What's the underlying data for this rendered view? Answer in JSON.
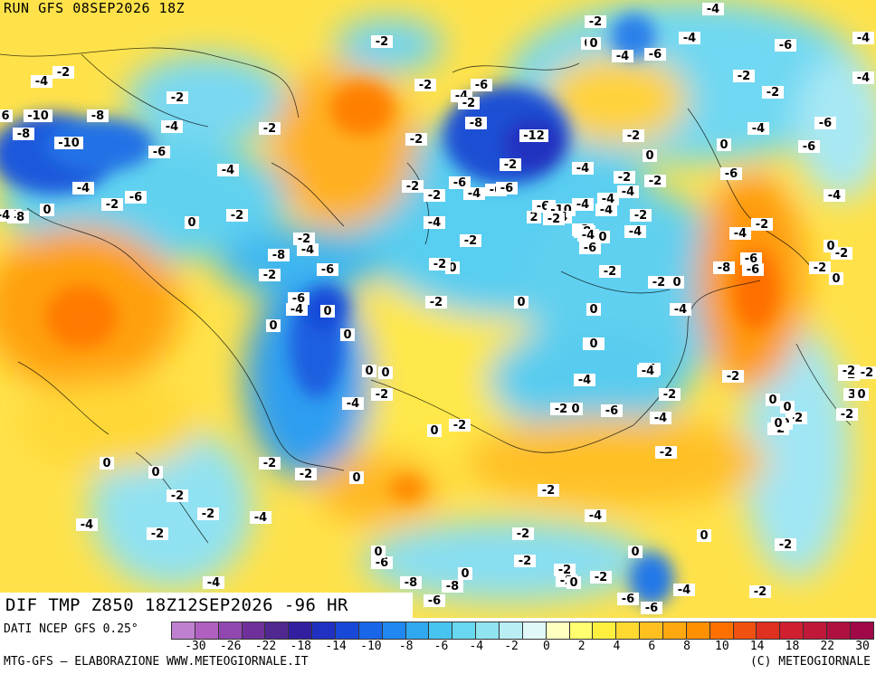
{
  "header": {
    "run": "RUN GFS 08SEP2026 18Z"
  },
  "title": {
    "text": "DIF TMP Z850 18Z12SEP2026 -96 HR"
  },
  "footer": {
    "source": "DATI NCEP GFS 0.25°",
    "credit": "MTG-GFS — ELABORAZIONE WWW.METEOGIORNALE.IT",
    "copyright": "(C) METEOGIORNALE"
  },
  "legend": {
    "colors": [
      "#c080d0",
      "#b060c0",
      "#9048b0",
      "#70309a",
      "#502890",
      "#3020a0",
      "#2030c0",
      "#1848d8",
      "#1a66e8",
      "#2088f0",
      "#30a8f0",
      "#48c4f0",
      "#68d8f0",
      "#90e4f0",
      "#b8eef4",
      "#e0f8f8",
      "#ffffc0",
      "#ffff70",
      "#fff040",
      "#ffd830",
      "#ffc020",
      "#ffa810",
      "#ff9000",
      "#ff7000",
      "#f05010",
      "#e03020",
      "#d02030",
      "#c01838",
      "#b01040",
      "#a00848"
    ],
    "tick_labels": [
      "-30",
      "-26",
      "-22",
      "-18",
      "-14",
      "-10",
      "-8",
      "-6",
      "-4",
      "-2",
      "0",
      "2",
      "4",
      "6",
      "8",
      "10",
      "14",
      "18",
      "22",
      "30"
    ]
  },
  "map_labels": [
    {
      "text": "-4"
    },
    {
      "text": "-2"
    },
    {
      "text": "0"
    },
    {
      "text": "-4"
    },
    {
      "text": "-6"
    },
    {
      "text": "-4"
    },
    {
      "text": "-2"
    },
    {
      "text": "-6"
    },
    {
      "text": "-4"
    },
    {
      "text": "-2"
    },
    {
      "text": "-2"
    },
    {
      "text": "-4"
    },
    {
      "text": "-6"
    },
    {
      "text": "0"
    },
    {
      "text": "-2"
    },
    {
      "text": "6"
    },
    {
      "text": "-10"
    },
    {
      "text": "-8"
    },
    {
      "text": "-8"
    },
    {
      "text": "-10"
    },
    {
      "text": "-12"
    },
    {
      "text": "-6"
    },
    {
      "text": "-4"
    },
    {
      "text": "-4"
    },
    {
      "text": "-2"
    },
    {
      "text": "-2"
    },
    {
      "text": "-6"
    },
    {
      "text": "-4"
    },
    {
      "text": "-2"
    },
    {
      "text": "-8"
    },
    {
      "text": "-6"
    },
    {
      "text": "0"
    },
    {
      "text": "-2"
    },
    {
      "text": "-4"
    },
    {
      "text": "-6"
    },
    {
      "text": "-4"
    },
    {
      "text": "0"
    },
    {
      "text": "-2"
    },
    {
      "text": "-2"
    },
    {
      "text": "-8"
    },
    {
      "text": "-2"
    },
    {
      "text": "-8"
    },
    {
      "text": "-4"
    },
    {
      "text": "-6"
    },
    {
      "text": "-2"
    },
    {
      "text": "-6"
    },
    {
      "text": "-4"
    },
    {
      "text": "-10"
    },
    {
      "text": "-8"
    },
    {
      "text": "0"
    },
    {
      "text": "-2"
    },
    {
      "text": "0"
    },
    {
      "text": "-4"
    },
    {
      "text": "-2"
    },
    {
      "text": "-2"
    },
    {
      "text": "0"
    },
    {
      "text": "-6"
    },
    {
      "text": "-4"
    },
    {
      "text": "-2"
    },
    {
      "text": "-2"
    },
    {
      "text": "0"
    },
    {
      "text": "-2"
    },
    {
      "text": "0"
    },
    {
      "text": "-4"
    },
    {
      "text": "0"
    },
    {
      "text": "-2"
    },
    {
      "text": "0"
    },
    {
      "text": "-6"
    },
    {
      "text": "-4"
    },
    {
      "text": "-2"
    },
    {
      "text": "0"
    },
    {
      "text": "-2"
    },
    {
      "text": "0"
    },
    {
      "text": "-2"
    },
    {
      "text": "0"
    },
    {
      "text": "-4"
    },
    {
      "text": "-4"
    },
    {
      "text": "0"
    },
    {
      "text": "-2"
    },
    {
      "text": "0"
    },
    {
      "text": "-4"
    },
    {
      "text": "-2"
    },
    {
      "text": "-2"
    },
    {
      "text": "-4"
    },
    {
      "text": "-6"
    },
    {
      "text": "-2"
    },
    {
      "text": "0"
    },
    {
      "text": "0"
    },
    {
      "text": "0"
    },
    {
      "text": "-2"
    },
    {
      "text": "-4"
    },
    {
      "text": "-2"
    },
    {
      "text": "-2"
    },
    {
      "text": "-2"
    },
    {
      "text": "-2"
    },
    {
      "text": "-2"
    },
    {
      "text": "-4"
    },
    {
      "text": "-4"
    },
    {
      "text": "-2"
    },
    {
      "text": "-4"
    },
    {
      "text": "0"
    },
    {
      "text": "-2"
    },
    {
      "text": "0"
    },
    {
      "text": "-2"
    },
    {
      "text": "-2"
    },
    {
      "text": "-6"
    },
    {
      "text": "-4"
    },
    {
      "text": "-6"
    },
    {
      "text": "-2"
    },
    {
      "text": "0"
    },
    {
      "text": "-2"
    },
    {
      "text": "-2"
    },
    {
      "text": "0"
    },
    {
      "text": "-6"
    },
    {
      "text": "-4"
    },
    {
      "text": "-8"
    },
    {
      "text": "-8"
    },
    {
      "text": "-6"
    },
    {
      "text": "-2"
    },
    {
      "text": "0"
    },
    {
      "text": "-2"
    },
    {
      "text": "-4"
    },
    {
      "text": "-2"
    },
    {
      "text": "0"
    },
    {
      "text": "0"
    },
    {
      "text": "2"
    },
    {
      "text": "-2"
    },
    {
      "text": "-6"
    },
    {
      "text": "-2"
    },
    {
      "text": "-10"
    },
    {
      "text": "-8"
    },
    {
      "text": "-4"
    },
    {
      "text": "-2"
    },
    {
      "text": "0"
    },
    {
      "text": "-2"
    },
    {
      "text": "0"
    },
    {
      "text": "-2"
    },
    {
      "text": "-2"
    },
    {
      "text": "0"
    },
    {
      "text": "-2"
    },
    {
      "text": "-4"
    },
    {
      "text": "-4"
    },
    {
      "text": "-4"
    },
    {
      "text": "-2"
    },
    {
      "text": "0"
    },
    {
      "text": "-6"
    },
    {
      "text": "-4"
    },
    {
      "text": "-6"
    },
    {
      "text": "-2"
    },
    {
      "text": "-4"
    },
    {
      "text": "0"
    },
    {
      "text": "-2"
    },
    {
      "text": "30"
    },
    {
      "text": "-2"
    },
    {
      "text": "0"
    },
    {
      "text": "-2"
    },
    {
      "text": "0"
    },
    {
      "text": "-2"
    },
    {
      "text": "0"
    },
    {
      "text": "-2"
    },
    {
      "text": "0"
    },
    {
      "text": "-4"
    },
    {
      "text": "-4"
    },
    {
      "text": "-2"
    },
    {
      "text": "-4"
    },
    {
      "text": "-4"
    },
    {
      "text": "-2"
    },
    {
      "text": "-6"
    },
    {
      "text": "-4"
    },
    {
      "text": "-2"
    },
    {
      "text": "-8"
    },
    {
      "text": "-6"
    },
    {
      "text": "-6"
    }
  ]
}
